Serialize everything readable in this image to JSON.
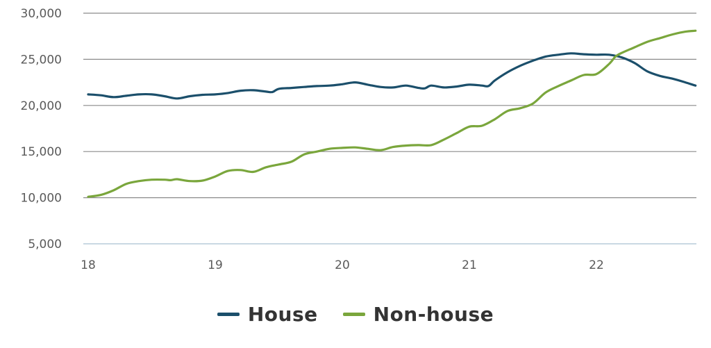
{
  "chart_data": {
    "type": "line",
    "title": "",
    "xlabel": "",
    "ylabel": "",
    "xlim": [
      18,
      22.8
    ],
    "ylim": [
      5000,
      30000
    ],
    "y_ticks": [
      5000,
      10000,
      15000,
      20000,
      25000,
      30000
    ],
    "y_tick_labels": [
      "5,000",
      "10,000",
      "15,000",
      "20,000",
      "25,000",
      "30,000"
    ],
    "x_ticks": [
      18,
      19,
      20,
      21,
      22
    ],
    "x_tick_labels": [
      "18",
      "19",
      "20",
      "21",
      "22"
    ],
    "grid": "horizontal",
    "legend_position": "bottom-center",
    "series": [
      {
        "name": "House",
        "color": "#1b4f6b",
        "points": [
          [
            18.0,
            21200
          ],
          [
            18.1,
            21100
          ],
          [
            18.2,
            20900
          ],
          [
            18.3,
            21050
          ],
          [
            18.4,
            21200
          ],
          [
            18.5,
            21200
          ],
          [
            18.6,
            21000
          ],
          [
            18.7,
            20750
          ],
          [
            18.8,
            21000
          ],
          [
            18.9,
            21150
          ],
          [
            19.0,
            21200
          ],
          [
            19.1,
            21350
          ],
          [
            19.2,
            21600
          ],
          [
            19.3,
            21650
          ],
          [
            19.4,
            21500
          ],
          [
            19.45,
            21450
          ],
          [
            19.5,
            21800
          ],
          [
            19.6,
            21900
          ],
          [
            19.7,
            22000
          ],
          [
            19.8,
            22100
          ],
          [
            19.9,
            22150
          ],
          [
            20.0,
            22300
          ],
          [
            20.1,
            22500
          ],
          [
            20.2,
            22250
          ],
          [
            20.3,
            22000
          ],
          [
            20.4,
            21950
          ],
          [
            20.5,
            22150
          ],
          [
            20.6,
            21900
          ],
          [
            20.65,
            21850
          ],
          [
            20.7,
            22150
          ],
          [
            20.8,
            21950
          ],
          [
            20.9,
            22050
          ],
          [
            21.0,
            22250
          ],
          [
            21.1,
            22150
          ],
          [
            21.15,
            22100
          ],
          [
            21.2,
            22700
          ],
          [
            21.3,
            23600
          ],
          [
            21.4,
            24300
          ],
          [
            21.5,
            24850
          ],
          [
            21.6,
            25300
          ],
          [
            21.7,
            25500
          ],
          [
            21.8,
            25650
          ],
          [
            21.9,
            25550
          ],
          [
            22.0,
            25500
          ],
          [
            22.1,
            25500
          ],
          [
            22.2,
            25200
          ],
          [
            22.3,
            24600
          ],
          [
            22.4,
            23700
          ],
          [
            22.5,
            23200
          ],
          [
            22.6,
            22900
          ],
          [
            22.7,
            22500
          ],
          [
            22.78,
            22150
          ]
        ]
      },
      {
        "name": "Non-house",
        "color": "#7aa63c",
        "points": [
          [
            18.0,
            10100
          ],
          [
            18.1,
            10300
          ],
          [
            18.2,
            10800
          ],
          [
            18.3,
            11500
          ],
          [
            18.4,
            11800
          ],
          [
            18.5,
            11950
          ],
          [
            18.6,
            11950
          ],
          [
            18.65,
            11900
          ],
          [
            18.7,
            12000
          ],
          [
            18.8,
            11800
          ],
          [
            18.9,
            11850
          ],
          [
            19.0,
            12300
          ],
          [
            19.1,
            12900
          ],
          [
            19.2,
            13000
          ],
          [
            19.3,
            12800
          ],
          [
            19.4,
            13300
          ],
          [
            19.5,
            13600
          ],
          [
            19.6,
            13900
          ],
          [
            19.7,
            14700
          ],
          [
            19.8,
            15000
          ],
          [
            19.9,
            15300
          ],
          [
            20.0,
            15400
          ],
          [
            20.1,
            15450
          ],
          [
            20.2,
            15300
          ],
          [
            20.3,
            15150
          ],
          [
            20.4,
            15500
          ],
          [
            20.5,
            15650
          ],
          [
            20.6,
            15700
          ],
          [
            20.7,
            15700
          ],
          [
            20.8,
            16300
          ],
          [
            20.9,
            17000
          ],
          [
            21.0,
            17700
          ],
          [
            21.1,
            17800
          ],
          [
            21.2,
            18500
          ],
          [
            21.3,
            19400
          ],
          [
            21.4,
            19700
          ],
          [
            21.5,
            20200
          ],
          [
            21.6,
            21400
          ],
          [
            21.7,
            22100
          ],
          [
            21.8,
            22700
          ],
          [
            21.9,
            23300
          ],
          [
            22.0,
            23400
          ],
          [
            22.1,
            24500
          ],
          [
            22.15,
            25300
          ],
          [
            22.2,
            25700
          ],
          [
            22.3,
            26300
          ],
          [
            22.4,
            26900
          ],
          [
            22.5,
            27300
          ],
          [
            22.6,
            27700
          ],
          [
            22.7,
            28000
          ],
          [
            22.78,
            28100
          ]
        ]
      }
    ]
  }
}
